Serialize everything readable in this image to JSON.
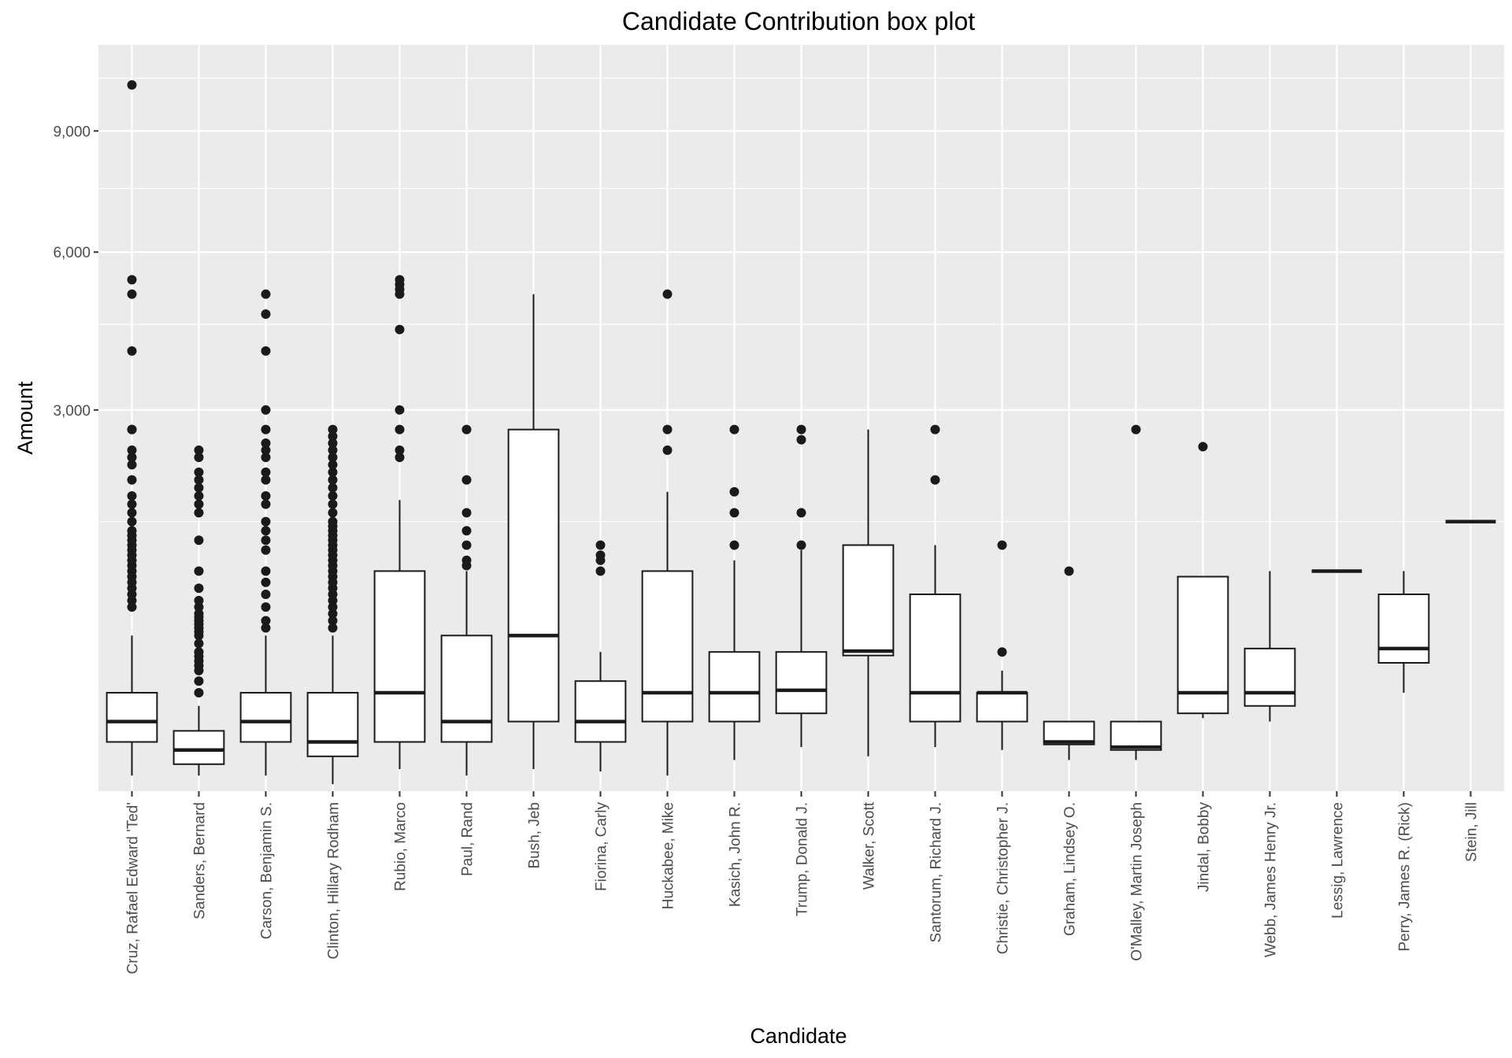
{
  "chart_data": {
    "type": "boxplot",
    "title": "Candidate Contribution box plot",
    "xlabel": "Candidate",
    "ylabel": "Amount",
    "y_scale": "sqrt",
    "ylim": [
      0,
      11500
    ],
    "y_major_ticks": [
      3000,
      6000,
      9000
    ],
    "y_tick_labels": [
      "3,000",
      "6,000",
      "9,000"
    ],
    "y_minor_ticks": [
      1500,
      4500,
      7500,
      10500
    ],
    "grid": true,
    "categories": [
      "Cruz, Rafael Edward 'Ted'",
      "Sanders, Bernard",
      "Carson, Benjamin S.",
      "Clinton, Hillary Rodham",
      "Rubio, Marco",
      "Paul, Rand",
      "Bush, Jeb",
      "Fiorina, Carly",
      "Huckabee, Mike",
      "Kasich, John R.",
      "Trump, Donald J.",
      "Walker, Scott",
      "Santorum, Richard J.",
      "Christie, Christopher J.",
      "Graham, Lindsey O.",
      "O'Malley, Martin Joseph",
      "Jindal, Bobby",
      "Webb, James Henry Jr.",
      "Lessig, Lawrence",
      "Perry, James R. (Rick)",
      "Stein, Jill"
    ],
    "boxes": [
      {
        "min": 5,
        "q1": 50,
        "median": 100,
        "q3": 200,
        "max": 500,
        "outliers": [
          700,
          750,
          800,
          850,
          900,
          950,
          1000,
          1050,
          1100,
          1150,
          1200,
          1250,
          1300,
          1350,
          1400,
          1500,
          1600,
          1700,
          1800,
          2000,
          2200,
          2300,
          2400,
          2700,
          2700,
          4000,
          5100,
          5400,
          10300
        ]
      },
      {
        "min": 5,
        "q1": 15,
        "median": 35,
        "q3": 75,
        "max": 150,
        "outliers": [
          200,
          250,
          300,
          325,
          350,
          375,
          400,
          450,
          500,
          525,
          550,
          575,
          600,
          625,
          650,
          700,
          750,
          850,
          1000,
          1300,
          1600,
          1700,
          1800,
          1900,
          2000,
          2100,
          2300,
          2400
        ]
      },
      {
        "min": 5,
        "q1": 50,
        "median": 100,
        "q3": 200,
        "max": 500,
        "outliers": [
          550,
          600,
          700,
          800,
          900,
          1000,
          1200,
          1300,
          1400,
          1500,
          1700,
          1800,
          2000,
          2100,
          2300,
          2400,
          2500,
          2700,
          3000,
          4000,
          4700,
          5100
        ]
      },
      {
        "min": 1,
        "q1": 25,
        "median": 50,
        "q3": 200,
        "max": 500,
        "outliers": [
          550,
          600,
          650,
          700,
          750,
          800,
          850,
          900,
          950,
          1000,
          1050,
          1100,
          1150,
          1200,
          1250,
          1300,
          1350,
          1400,
          1450,
          1500,
          1600,
          1700,
          1800,
          1900,
          2000,
          2100,
          2200,
          2300,
          2400,
          2500,
          2600,
          2700
        ]
      },
      {
        "min": 10,
        "q1": 50,
        "median": 200,
        "q3": 1000,
        "max": 1750,
        "outliers": [
          2300,
          2400,
          2700,
          3000,
          4400,
          5100,
          5200,
          5300,
          5400
        ]
      },
      {
        "min": 5,
        "q1": 50,
        "median": 100,
        "q3": 500,
        "max": 1000,
        "outliers": [
          1050,
          1100,
          1250,
          1400,
          1600,
          2000,
          2700
        ]
      },
      {
        "min": 10,
        "q1": 100,
        "median": 500,
        "q3": 2700,
        "max": 5100,
        "outliers": []
      },
      {
        "min": 8,
        "q1": 50,
        "median": 100,
        "q3": 250,
        "max": 400,
        "outliers": [
          1000,
          1100,
          1150,
          1250
        ]
      },
      {
        "min": 5,
        "q1": 100,
        "median": 200,
        "q3": 1000,
        "max": 1850,
        "outliers": [
          2400,
          2700,
          5100
        ]
      },
      {
        "min": 20,
        "q1": 100,
        "median": 200,
        "q3": 400,
        "max": 1100,
        "outliers": [
          1250,
          1600,
          1850,
          2700
        ]
      },
      {
        "min": 40,
        "q1": 125,
        "median": 210,
        "q3": 400,
        "max": 1200,
        "outliers": [
          1250,
          1600,
          2550,
          2700
        ]
      },
      {
        "min": 25,
        "q1": 380,
        "median": 405,
        "q3": 1250,
        "max": 2700,
        "outliers": []
      },
      {
        "min": 40,
        "q1": 100,
        "median": 200,
        "q3": 800,
        "max": 1250,
        "outliers": [
          2000,
          2700
        ]
      },
      {
        "min": 35,
        "q1": 100,
        "median": 200,
        "q3": 200,
        "max": 300,
        "outliers": [
          400,
          1250
        ]
      },
      {
        "min": 20,
        "q1": 45,
        "median": 50,
        "q3": 100,
        "max": 100,
        "outliers": [
          1000
        ]
      },
      {
        "min": 20,
        "q1": 35,
        "median": 40,
        "q3": 100,
        "max": 100,
        "outliers": [
          2700
        ]
      },
      {
        "min": 110,
        "q1": 125,
        "median": 200,
        "q3": 950,
        "max": 950,
        "outliers": [
          2450
        ]
      },
      {
        "min": 100,
        "q1": 150,
        "median": 200,
        "q3": 420,
        "max": 1000,
        "outliers": []
      },
      {
        "min": 1000,
        "q1": 1000,
        "median": 1000,
        "q3": 1000,
        "max": 1000,
        "outliers": []
      },
      {
        "min": 200,
        "q1": 340,
        "median": 420,
        "q3": 800,
        "max": 1000,
        "outliers": []
      },
      {
        "min": 1500,
        "q1": 1500,
        "median": 1500,
        "q3": 1500,
        "max": 1500,
        "outliers": []
      }
    ]
  }
}
